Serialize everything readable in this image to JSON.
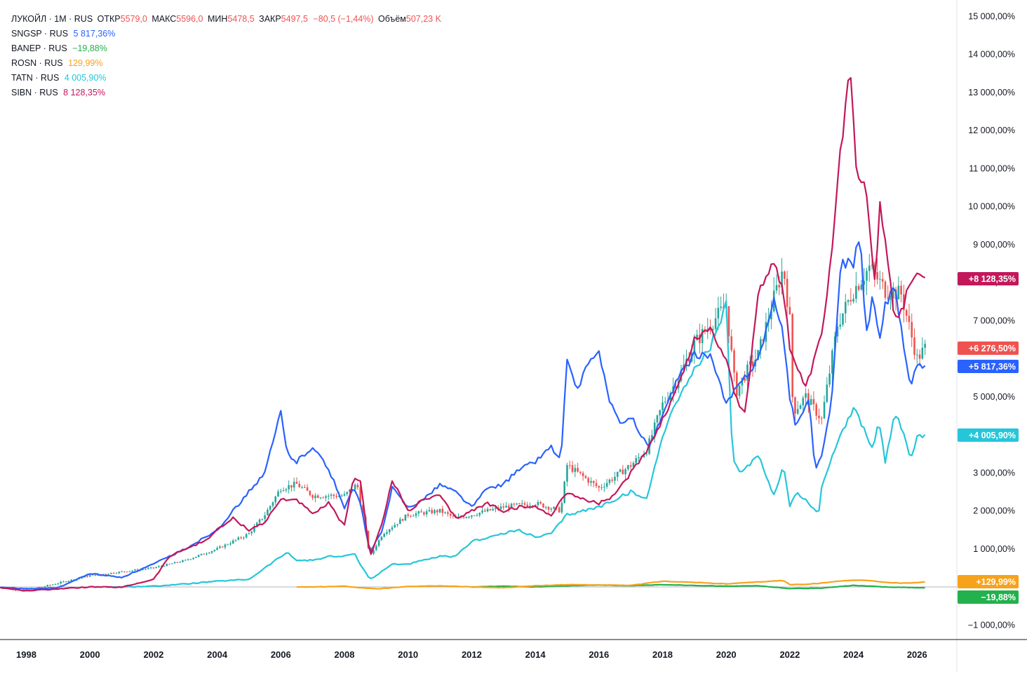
{
  "legend": {
    "main": {
      "symbol": "ЛУКОЙЛ · 1М · RUS",
      "open_label": "ОТКР",
      "open_value": "5579,0",
      "high_label": "МАКС",
      "high_value": "5596,0",
      "low_label": "МИН",
      "low_value": "5478,5",
      "close_label": "ЗАКР",
      "close_value": "5497,5",
      "change": "−80,5 (−1,44%)",
      "volume_label": "Объём",
      "volume_value": "507,23 K",
      "color": "#ef5350"
    },
    "compare": [
      {
        "symbol": "SNGSP · RUS",
        "value": "5 817,36%",
        "color": "#2962ff"
      },
      {
        "symbol": "BANEP · RUS",
        "value": "−19,88%",
        "color": "#22b14c"
      },
      {
        "symbol": "ROSN · RUS",
        "value": "129,99%",
        "color": "#f7a21b"
      },
      {
        "symbol": "TATN · RUS",
        "value": "4 005,90%",
        "color": "#26c6da"
      },
      {
        "symbol": "SIBN · RUS",
        "value": "8 128,35%",
        "color": "#c2185b"
      }
    ]
  },
  "price_badges": [
    {
      "label": "+8 128,35%",
      "value": 8128.35,
      "color": "#c2185b"
    },
    {
      "label": "+6 276,50%",
      "value": 6276.5,
      "color": "#ef5350"
    },
    {
      "label": "+5 817,36%",
      "value": 5817.36,
      "color": "#2962ff"
    },
    {
      "label": "+4 005,90%",
      "value": 4005.9,
      "color": "#26c6da"
    },
    {
      "label": "+129,99%",
      "value": 129.99,
      "color": "#f7a21b"
    },
    {
      "label": "−19,88%",
      "value": -19.88,
      "color": "#22b14c"
    }
  ],
  "chart_data": {
    "type": "line",
    "title": "ЛУКОЙЛ · 1М · RUS",
    "y_unit": "%",
    "ylim": [
      -1500,
      15200
    ],
    "xlim": [
      1996.9,
      2026.45
    ],
    "y_ticks": [
      -1000,
      1000,
      2000,
      3000,
      4000,
      5000,
      7000,
      8000,
      9000,
      10000,
      11000,
      12000,
      13000,
      14000,
      15000
    ],
    "y_tick_labels": [
      "−1 000,00%",
      "1 000,00%",
      "2 000,00%",
      "3 000,00%",
      "4 000,00%",
      "5 000,00%",
      "7 000,00%",
      "8 000,00%",
      "9 000,00%",
      "10 000,00%",
      "11 000,00%",
      "12 000,00%",
      "13 000,00%",
      "14 000,00%",
      "15 000,00%"
    ],
    "x_ticks": [
      1998,
      2000,
      2002,
      2004,
      2006,
      2008,
      2010,
      2012,
      2014,
      2016,
      2018,
      2020,
      2022,
      2024,
      2026
    ],
    "x_tick_labels": [
      "1998",
      "2000",
      "2002",
      "2004",
      "2006",
      "2008",
      "2010",
      "2012",
      "2014",
      "2016",
      "2018",
      "2020",
      "2022",
      "2024",
      "2026"
    ],
    "candles": {
      "name": "ЛУКОЙЛ",
      "up_color": "#26a69a",
      "down_color": "#ef5350",
      "x": [
        1997.0,
        1998.0,
        1999.0,
        1999.5,
        2000.0,
        2001.0,
        2002.0,
        2003.0,
        2004.0,
        2005.0,
        2005.5,
        2006.0,
        2006.5,
        2007.0,
        2008.0,
        2008.4,
        2008.8,
        2009.2,
        2010.0,
        2011.0,
        2011.5,
        2012.0,
        2013.0,
        2014.0,
        2014.8,
        2015.0,
        2016.0,
        2017.0,
        2017.5,
        2018.0,
        2018.5,
        2019.0,
        2019.5,
        2020.0,
        2020.3,
        2020.6,
        2021.0,
        2021.5,
        2021.8,
        2022.0,
        2022.1,
        2022.5,
        2023.0,
        2023.5,
        2024.0,
        2024.5,
        2025.0,
        2025.5,
        2026.0,
        2026.25
      ],
      "y": [
        0,
        -100,
        100,
        200,
        300,
        400,
        500,
        700,
        1000,
        1400,
        1900,
        2600,
        2700,
        2400,
        2400,
        2700,
        800,
        1400,
        1900,
        2000,
        1800,
        1900,
        2100,
        2200,
        2000,
        3200,
        2600,
        3200,
        3600,
        4800,
        5500,
        6400,
        6900,
        7400,
        5100,
        5600,
        6100,
        7600,
        8400,
        7000,
        4600,
        5000,
        4400,
        6900,
        7800,
        8400,
        7800,
        7700,
        6000,
        6276.5
      ]
    },
    "series": [
      {
        "name": "SIBN",
        "color": "#c2185b",
        "x": [
          1997.0,
          1998.0,
          1999.0,
          2000.0,
          2001.0,
          2002.0,
          2002.5,
          2003.0,
          2003.6,
          2004.0,
          2004.5,
          2005.0,
          2005.5,
          2006.0,
          2006.5,
          2007.0,
          2007.5,
          2008.0,
          2008.3,
          2008.5,
          2008.8,
          2009.2,
          2009.5,
          2010.0,
          2010.5,
          2011.0,
          2011.5,
          2012.0,
          2012.5,
          2013.0,
          2013.5,
          2014.0,
          2014.5,
          2015.0,
          2015.5,
          2016.0,
          2016.5,
          2017.0,
          2017.5,
          2018.0,
          2018.5,
          2019.0,
          2019.5,
          2020.0,
          2020.3,
          2020.6,
          2021.0,
          2021.5,
          2021.8,
          2022.0,
          2022.2,
          2022.5,
          2023.0,
          2023.3,
          2023.6,
          2023.9,
          2024.1,
          2024.4,
          2024.7,
          2024.8,
          2025.0,
          2025.3,
          2025.5,
          2025.8,
          2026.0,
          2026.25
        ],
        "y": [
          0,
          -100,
          -50,
          0,
          -10,
          200,
          800,
          1000,
          1200,
          1500,
          1800,
          1500,
          1700,
          2300,
          2300,
          1900,
          2200,
          1600,
          2900,
          2800,
          800,
          1700,
          2800,
          2000,
          2300,
          2400,
          1800,
          2000,
          2200,
          2000,
          2100,
          2100,
          1900,
          2500,
          2300,
          2200,
          2400,
          3000,
          3600,
          4400,
          5300,
          6500,
          6800,
          6000,
          5000,
          4500,
          7700,
          8600,
          7800,
          6300,
          5800,
          5200,
          6600,
          8600,
          11500,
          13600,
          11000,
          10500,
          7800,
          10200,
          9200,
          7000,
          7200,
          8100,
          8200,
          8128.35
        ]
      },
      {
        "name": "SNGSP",
        "color": "#2962ff",
        "x": [
          1997.0,
          1998.0,
          1999.0,
          2000.0,
          2001.0,
          2002.0,
          2003.0,
          2004.0,
          2005.0,
          2005.5,
          2006.0,
          2006.2,
          2006.5,
          2007.0,
          2007.5,
          2008.0,
          2008.3,
          2008.5,
          2008.8,
          2009.2,
          2009.5,
          2010.0,
          2010.5,
          2011.0,
          2011.5,
          2012.0,
          2012.5,
          2013.0,
          2013.5,
          2014.0,
          2014.5,
          2014.8,
          2015.0,
          2015.3,
          2015.5,
          2016.0,
          2016.3,
          2016.7,
          2017.0,
          2017.3,
          2017.6,
          2018.0,
          2018.5,
          2019.0,
          2019.5,
          2020.0,
          2020.3,
          2020.6,
          2021.0,
          2021.5,
          2021.8,
          2022.0,
          2022.2,
          2022.6,
          2022.8,
          2023.0,
          2023.3,
          2023.6,
          2024.0,
          2024.2,
          2024.4,
          2024.6,
          2024.8,
          2025.0,
          2025.3,
          2025.6,
          2025.8,
          2026.0,
          2026.25
        ],
        "y": [
          0,
          -50,
          -20,
          350,
          250,
          600,
          1000,
          1500,
          2500,
          3000,
          4600,
          3500,
          3300,
          3700,
          3100,
          2100,
          2600,
          2200,
          900,
          1500,
          2600,
          2100,
          2300,
          2700,
          2500,
          2100,
          2600,
          2700,
          3100,
          3300,
          3700,
          3300,
          6000,
          5100,
          5600,
          6200,
          5000,
          4200,
          4500,
          4000,
          3700,
          4500,
          5500,
          6100,
          6100,
          4800,
          5200,
          5500,
          6000,
          7500,
          6600,
          5000,
          4200,
          5000,
          3000,
          3500,
          4700,
          8500,
          8500,
          9300,
          6600,
          7600,
          6500,
          7400,
          8000,
          6200,
          5200,
          5900,
          5817.36
        ]
      },
      {
        "name": "TATN",
        "color": "#26c6da",
        "x": [
          2000.5,
          2001.0,
          2002.0,
          2003.0,
          2004.0,
          2005.0,
          2005.5,
          2006.0,
          2006.2,
          2006.5,
          2007.0,
          2007.5,
          2008.0,
          2008.3,
          2008.5,
          2008.8,
          2009.0,
          2009.5,
          2010.0,
          2010.5,
          2011.0,
          2011.5,
          2012.0,
          2012.5,
          2013.0,
          2013.5,
          2014.0,
          2014.5,
          2015.0,
          2015.5,
          2016.0,
          2016.5,
          2017.0,
          2017.5,
          2018.0,
          2018.5,
          2019.0,
          2019.5,
          2020.0,
          2020.2,
          2020.5,
          2021.0,
          2021.5,
          2021.8,
          2022.0,
          2022.2,
          2022.6,
          2022.9,
          2023.0,
          2023.3,
          2023.6,
          2024.0,
          2024.3,
          2024.6,
          2024.8,
          2025.0,
          2025.3,
          2025.6,
          2025.8,
          2026.0,
          2026.25
        ],
        "y": [
          0,
          0,
          20,
          80,
          150,
          200,
          500,
          800,
          900,
          700,
          700,
          800,
          800,
          900,
          600,
          200,
          300,
          600,
          600,
          700,
          800,
          800,
          1200,
          1300,
          1400,
          1500,
          1300,
          1400,
          1900,
          2000,
          2100,
          2300,
          2500,
          2300,
          4000,
          5000,
          5700,
          6300,
          7400,
          3300,
          3000,
          3500,
          2400,
          3200,
          2100,
          2500,
          2200,
          1900,
          2600,
          3400,
          4000,
          4700,
          4200,
          3600,
          4400,
          3300,
          4600,
          4000,
          3300,
          3900,
          4005.9
        ]
      },
      {
        "name": "ROSN",
        "color": "#f7a21b",
        "x": [
          2006.5,
          2007.0,
          2008.0,
          2008.5,
          2009.0,
          2010.0,
          2011.0,
          2012.0,
          2013.0,
          2014.0,
          2015.0,
          2016.0,
          2017.0,
          2018.0,
          2019.0,
          2020.0,
          2021.0,
          2021.8,
          2022.0,
          2022.5,
          2023.0,
          2023.5,
          2024.0,
          2024.5,
          2025.0,
          2025.5,
          2026.0,
          2026.25
        ],
        "y": [
          0,
          0,
          20,
          -20,
          -50,
          10,
          30,
          0,
          -20,
          30,
          60,
          50,
          40,
          150,
          120,
          80,
          130,
          170,
          60,
          70,
          100,
          150,
          180,
          170,
          120,
          100,
          110,
          129.99
        ]
      },
      {
        "name": "BANEP",
        "color": "#22b14c",
        "x": [
          2012.0,
          2013.0,
          2014.0,
          2015.0,
          2016.0,
          2017.0,
          2018.0,
          2019.0,
          2020.0,
          2021.0,
          2022.0,
          2023.0,
          2024.0,
          2025.0,
          2026.0,
          2026.25
        ],
        "y": [
          0,
          20,
          0,
          30,
          50,
          30,
          60,
          40,
          20,
          30,
          -40,
          -30,
          40,
          0,
          -20,
          -19.88
        ]
      }
    ]
  }
}
